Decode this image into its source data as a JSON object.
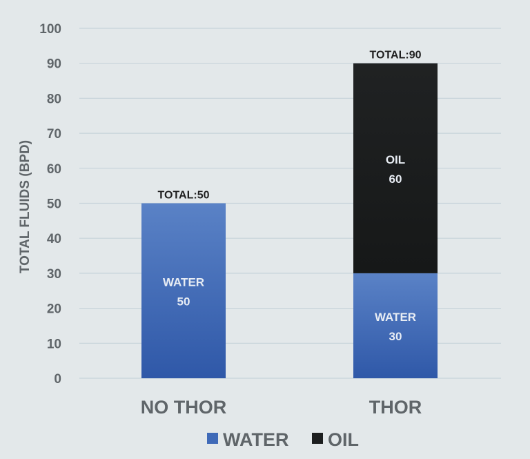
{
  "chart_data": {
    "type": "bar",
    "stacked": true,
    "categories": [
      "NO THOR",
      "THOR"
    ],
    "series": [
      {
        "name": "WATER",
        "values": [
          50,
          30
        ],
        "color": "#3f6ab8",
        "segment_labels": [
          "WATER",
          "WATER"
        ]
      },
      {
        "name": "OIL",
        "values": [
          0,
          60
        ],
        "color": "#1c1e1f",
        "segment_labels": [
          "",
          "OIL"
        ]
      }
    ],
    "totals": [
      50,
      90
    ],
    "total_prefix": "TOTAL:",
    "ylabel": "TOTAL FLUIDS (BPD)",
    "xlabel": "",
    "title": "",
    "ylim": [
      0,
      100
    ],
    "yticks": [
      0,
      10,
      20,
      30,
      40,
      50,
      60,
      70,
      80,
      90,
      100
    ],
    "grid": true,
    "legend": "bottom-center"
  }
}
